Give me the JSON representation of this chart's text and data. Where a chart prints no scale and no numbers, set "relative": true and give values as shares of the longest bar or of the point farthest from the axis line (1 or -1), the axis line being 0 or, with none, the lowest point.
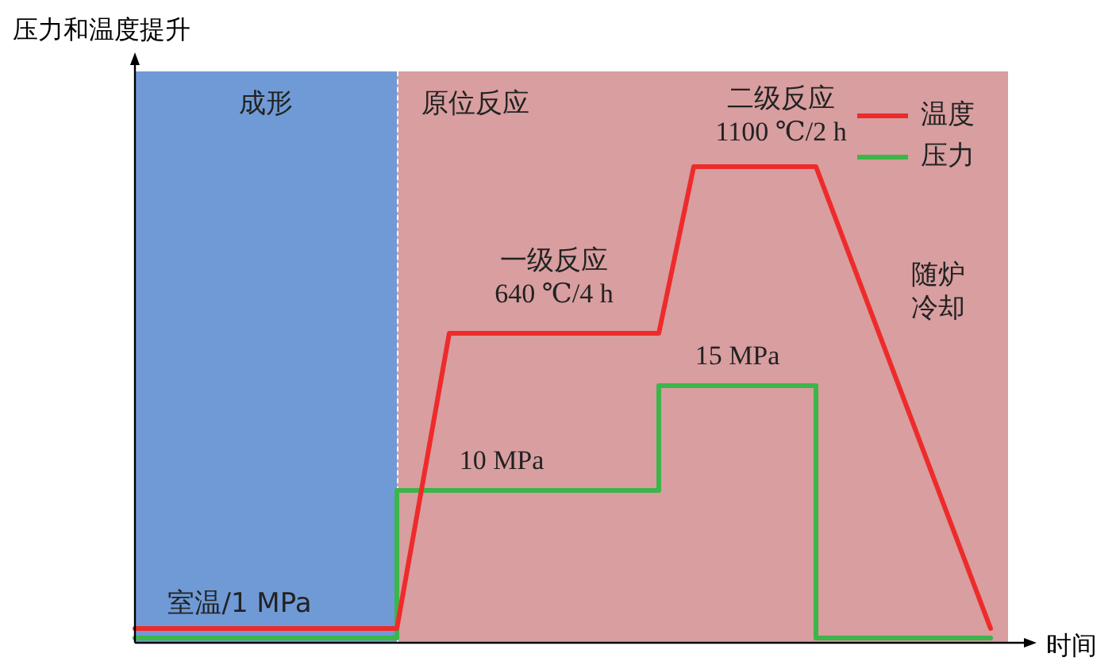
{
  "chart_data": {
    "type": "line",
    "relative": true,
    "xlabel": "时间",
    "ylabel": "压力和温度提升",
    "tick_labels": false,
    "grid": false,
    "legend": "top right",
    "categories": [
      null,
      null,
      null,
      null,
      null,
      null,
      null,
      null,
      null,
      null,
      null,
      null,
      null,
      null,
      null,
      null,
      null,
      null,
      null,
      null,
      null,
      null,
      null,
      null,
      null,
      null,
      null,
      null,
      null,
      null,
      null,
      null,
      null,
      null,
      null,
      null,
      null,
      null,
      null,
      null,
      null,
      null,
      null,
      null,
      null,
      null,
      null,
      null,
      null,
      null,
      null
    ],
    "series": [
      {
        "name": "温度",
        "color": "#ee2b2b",
        "values": [
          0.03,
          null,
          null,
          null,
          null,
          null,
          null,
          null,
          null,
          null,
          null,
          null,
          null,
          null,
          null,
          0.03,
          null,
          null,
          0.65,
          null,
          null,
          null,
          null,
          null,
          null,
          null,
          null,
          null,
          null,
          null,
          0.65,
          null,
          1,
          null,
          null,
          null,
          null,
          null,
          null,
          1,
          null,
          null,
          null,
          null,
          null,
          null,
          null,
          null,
          null,
          0.03,
          null
        ]
      },
      {
        "name": "压力",
        "type": "step",
        "color": "#3cb54a",
        "values": [
          0.01,
          null,
          null,
          null,
          null,
          null,
          null,
          null,
          null,
          null,
          null,
          null,
          null,
          null,
          null,
          0.01,
          null,
          null,
          null,
          null,
          null,
          null,
          null,
          null,
          null,
          null,
          null,
          null,
          null,
          null,
          0.32,
          null,
          null,
          null,
          null,
          null,
          null,
          null,
          null,
          0.54,
          null,
          null,
          null,
          null,
          null,
          null,
          null,
          null,
          null,
          0.01,
          null
        ]
      }
    ],
    "annotations": [
      "成形",
      "原位反应",
      "一级反应",
      "640 ℃/4 h",
      "二级反应",
      "1100 ℃/2 h",
      "10 MPa",
      "15 MPa",
      "室温/1 MPa",
      "随炉",
      "冷却"
    ]
  }
}
